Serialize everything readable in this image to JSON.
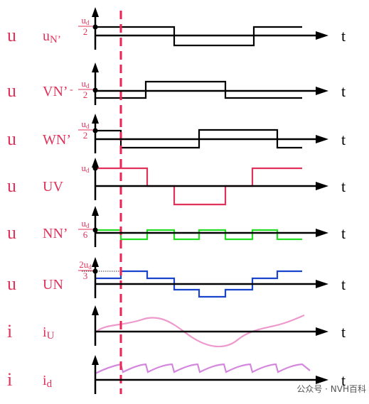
{
  "rows": [
    {
      "quantity": "u",
      "name": "u",
      "name_sub": "N’",
      "level": {
        "num": "u",
        "num_sub": "d",
        "den": "2"
      },
      "axis": "t"
    },
    {
      "quantity": "u",
      "name": "VN’",
      "level": {
        "prefix": "-",
        "num": "u",
        "num_sub": "d",
        "den": "2"
      },
      "axis": "t"
    },
    {
      "quantity": "u",
      "name": "WN’",
      "level": {
        "num": "u",
        "num_sub": "d",
        "den": "2"
      },
      "axis": "t"
    },
    {
      "quantity": "u",
      "name": "UV",
      "level": {
        "num": "u",
        "num_sub": "d"
      },
      "axis": "t"
    },
    {
      "quantity": "u",
      "name": "NN’",
      "level": {
        "num": "u",
        "num_sub": "d",
        "den": "6"
      },
      "axis": "t"
    },
    {
      "quantity": "u",
      "name": "UN",
      "level": {
        "num": "2u",
        "num_sub": "d",
        "den": "3"
      },
      "axis": "t"
    },
    {
      "quantity": "i",
      "name": "i",
      "name_sub": "U",
      "axis": "t"
    },
    {
      "quantity": "i",
      "name": "i",
      "name_sub": "d",
      "axis": "t"
    }
  ],
  "watermark": "公众号 · NVH百科"
}
